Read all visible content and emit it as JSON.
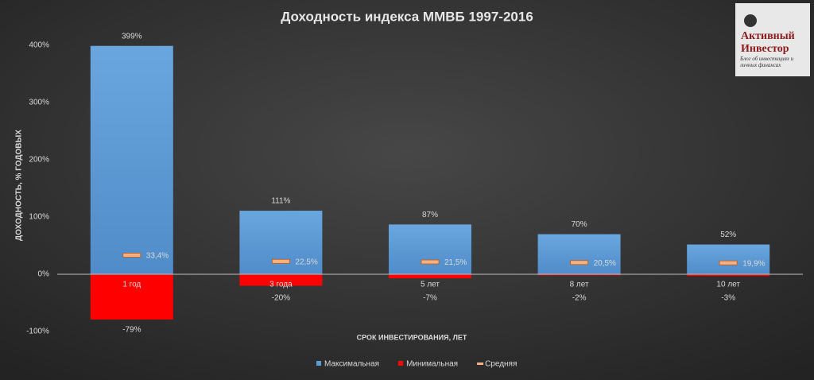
{
  "chart_data": {
    "type": "bar",
    "title": "Доходность индекса ММВБ 1997-2016",
    "x_label": "СРОК ИНВЕСТИРОВАНИЯ, ЛЕТ",
    "y_label": "ДОХОДНОСТЬ, % ГОДОВЫХ",
    "categories": [
      "1 год",
      "3 года",
      "5 лет",
      "8 лет",
      "10 лет"
    ],
    "series": [
      {
        "name": "Максимальная",
        "color": "#5b9bd5",
        "values": [
          399,
          111,
          87,
          70,
          52
        ],
        "value_labels": [
          "399%",
          "111%",
          "87%",
          "70%",
          "52%"
        ]
      },
      {
        "name": "Минимальная",
        "color": "#ff0000",
        "values": [
          -79,
          -20,
          -7,
          -2,
          -3
        ],
        "value_labels": [
          "-79%",
          "-20%",
          "-7%",
          "-2%",
          "-3%"
        ]
      },
      {
        "name": "Средняя",
        "color": "#f4b183",
        "marker": "dash",
        "values": [
          33.4,
          22.5,
          21.5,
          20.5,
          19.9
        ],
        "value_labels": [
          "33,4%",
          "22,5%",
          "21,5%",
          "20,5%",
          "19,9%"
        ]
      }
    ],
    "ylim": [
      -100,
      400
    ],
    "yticks": [
      {
        "value": -100,
        "label": "-100%"
      },
      {
        "value": 0,
        "label": "0%"
      },
      {
        "value": 100,
        "label": "100%"
      },
      {
        "value": 200,
        "label": "200%"
      },
      {
        "value": 300,
        "label": "300%"
      },
      {
        "value": 400,
        "label": "400%"
      }
    ],
    "grid": false,
    "legend": "bottom"
  },
  "logo": {
    "lines": [
      "Активный",
      "Инвестор"
    ],
    "subtitle": "Блог об инвестициях и личных финансах"
  }
}
